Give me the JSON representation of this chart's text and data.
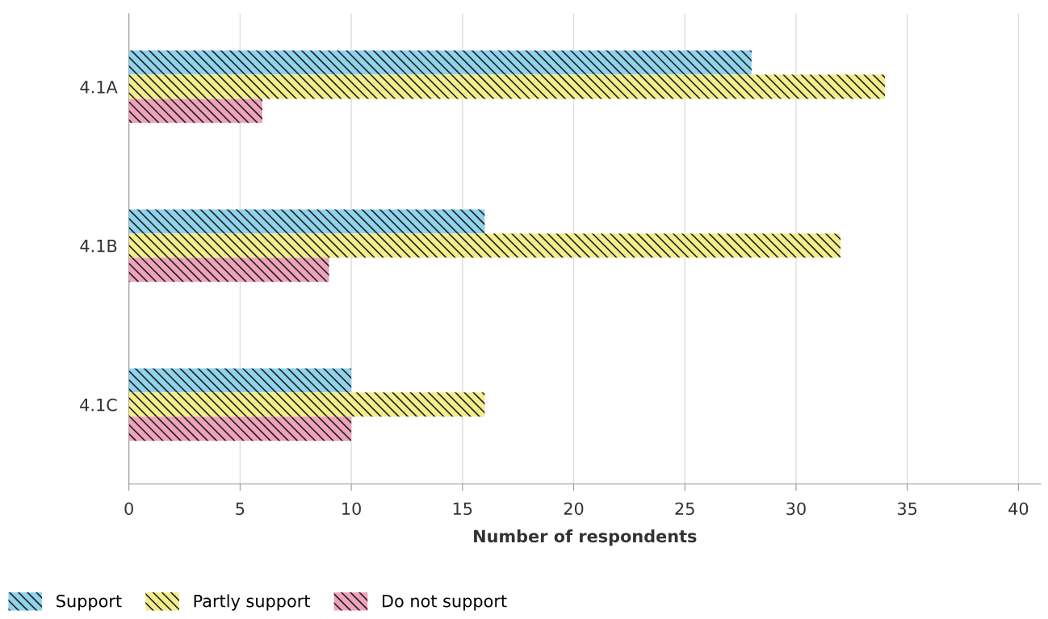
{
  "chart_data": {
    "type": "bar",
    "orientation": "horizontal",
    "xlabel": "Number of respondents",
    "categories": [
      "4.1A",
      "4.1B",
      "4.1C"
    ],
    "series": [
      {
        "name": "Support",
        "color": "#8fd3ec",
        "values": [
          28,
          16,
          10
        ]
      },
      {
        "name": "Partly support",
        "color": "#f4ee8a",
        "values": [
          34,
          32,
          16
        ]
      },
      {
        "name": "Do not support",
        "color": "#efa3bb",
        "values": [
          6,
          9,
          10
        ]
      }
    ],
    "xlim": [
      0,
      41
    ],
    "xticks": [
      0,
      5,
      10,
      15,
      20,
      25,
      30,
      35,
      40
    ],
    "grid": "x",
    "legend": "bottom left"
  }
}
